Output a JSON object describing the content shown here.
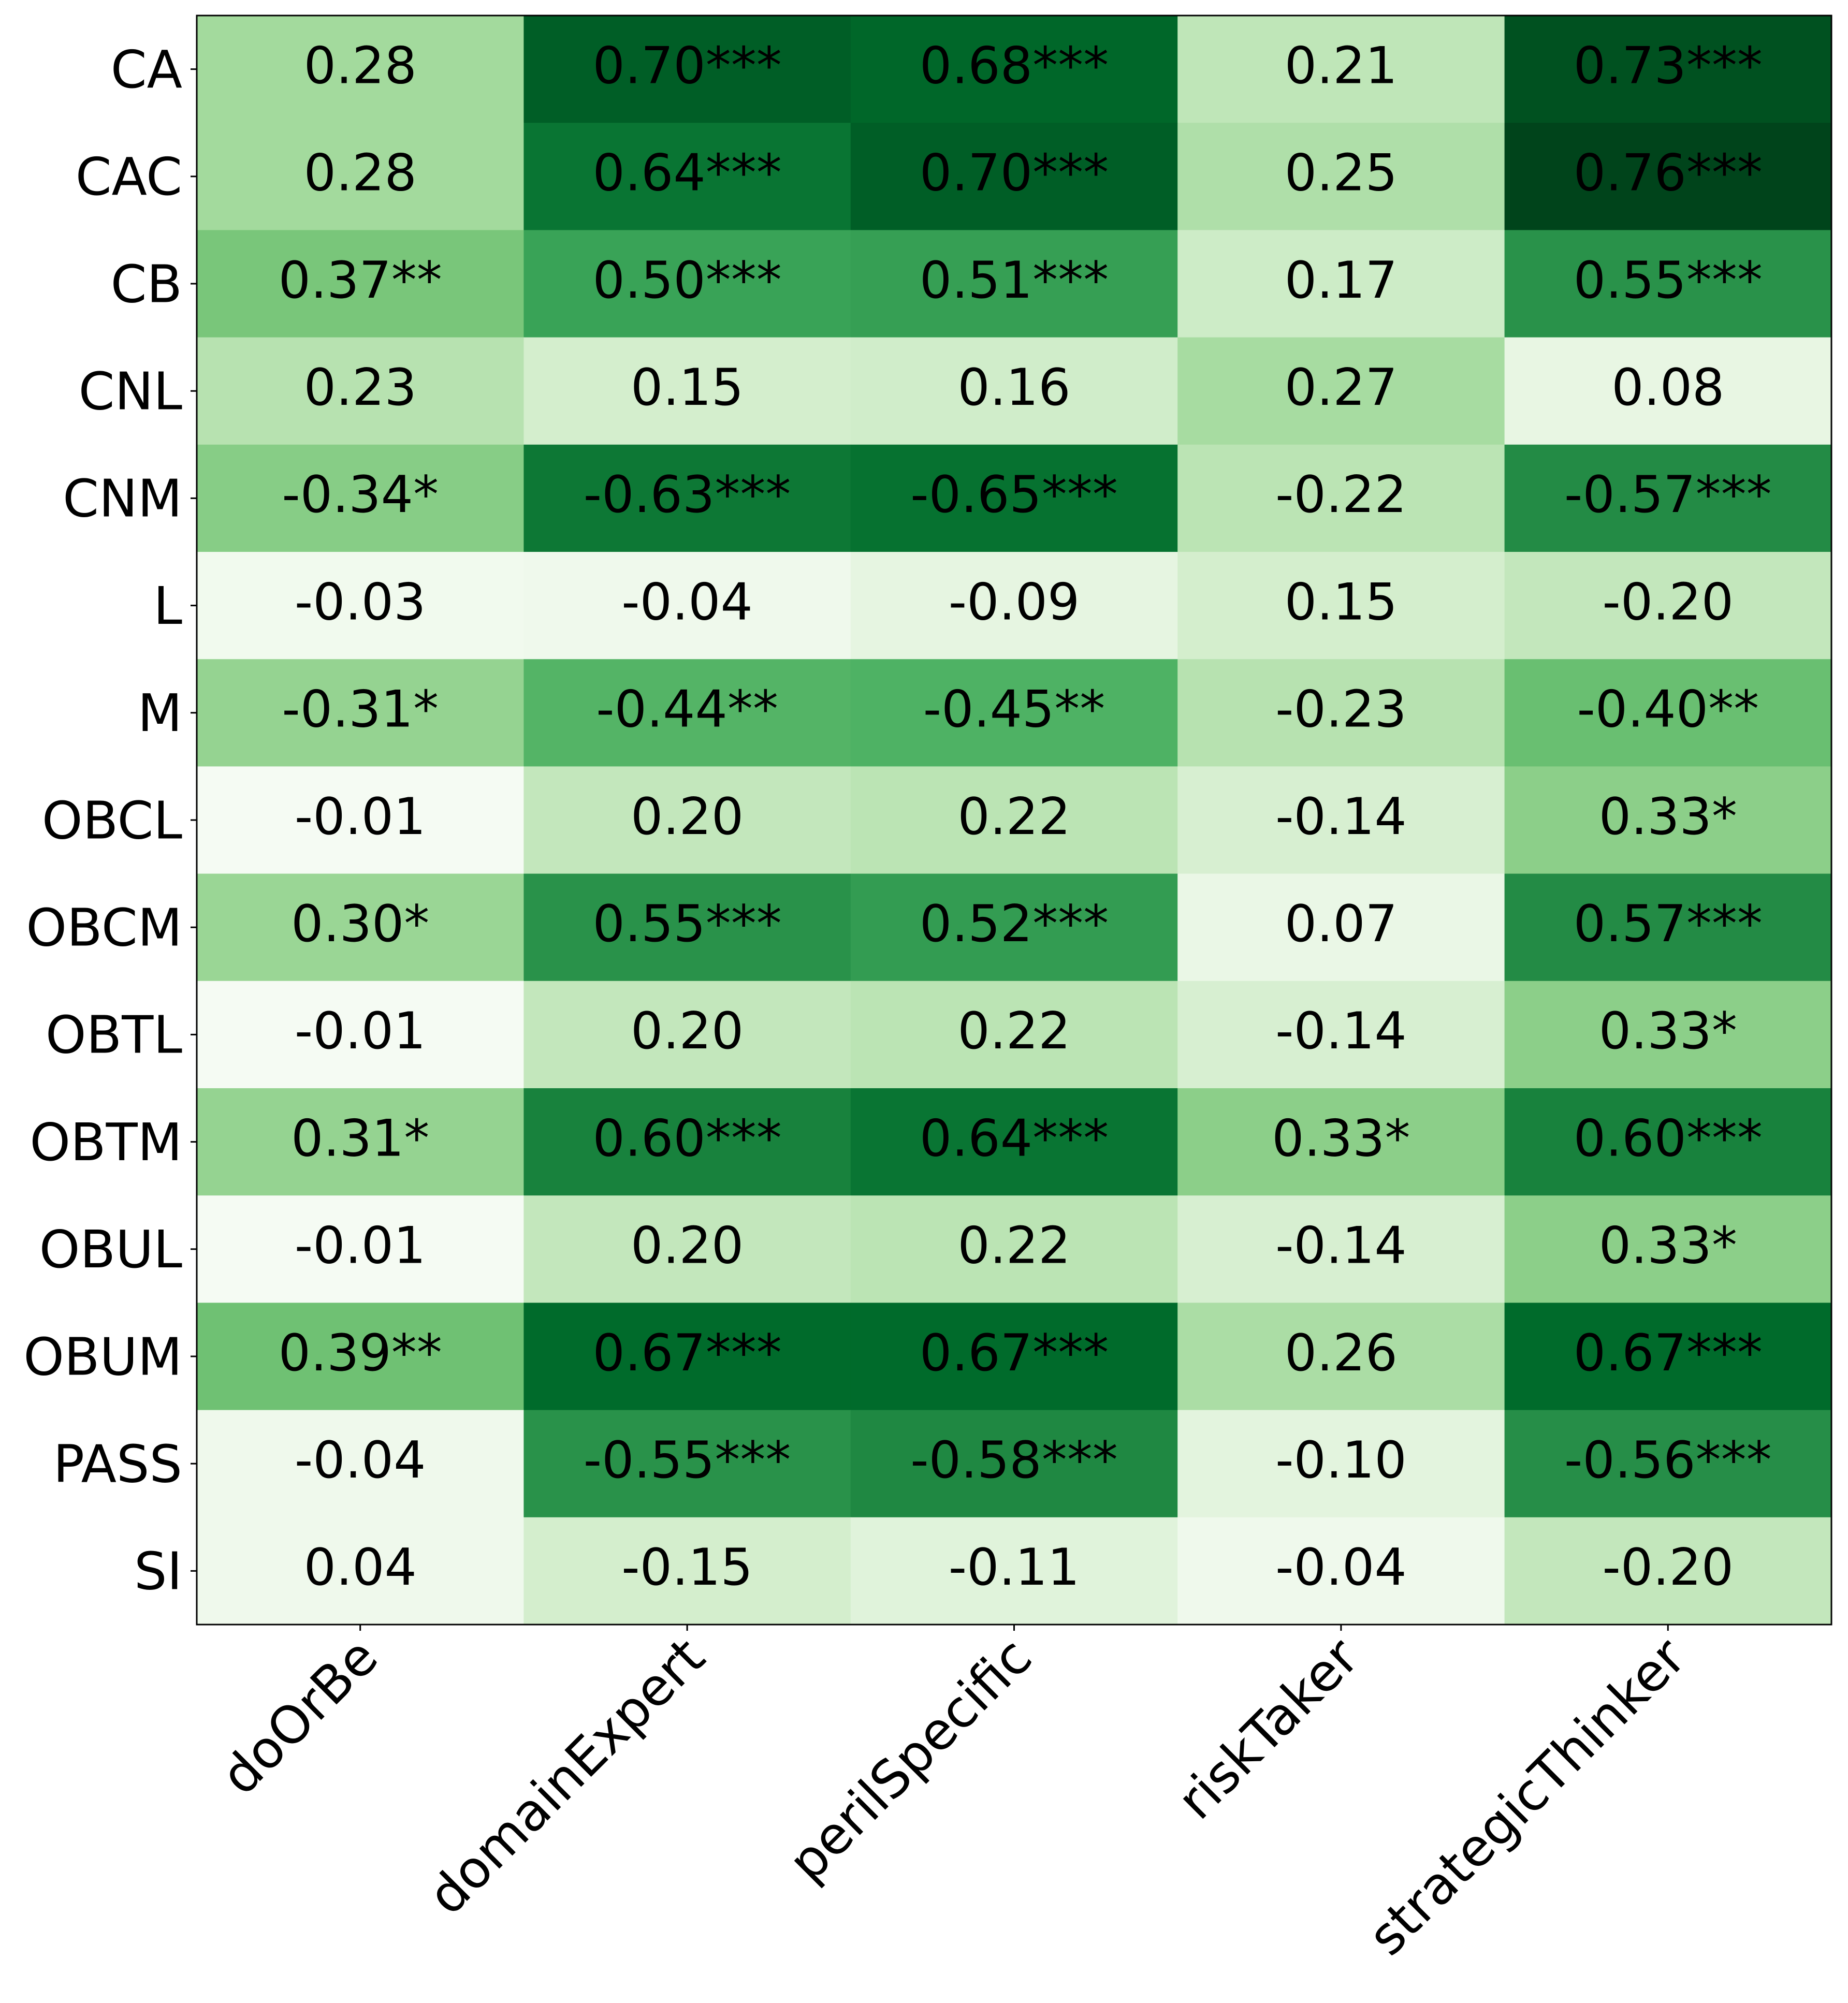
{
  "chart_data": {
    "type": "heatmap",
    "x": [
      "doOrBe",
      "domainExpert",
      "perilSpecific",
      "riskTaker",
      "strategicThinker"
    ],
    "y": [
      "CA",
      "CAC",
      "CB",
      "CNL",
      "CNM",
      "L",
      "M",
      "OBCL",
      "OBCM",
      "OBTL",
      "OBTM",
      "OBUL",
      "OBUM",
      "PASS",
      "SI"
    ],
    "values": [
      [
        0.28,
        0.7,
        0.68,
        0.21,
        0.73
      ],
      [
        0.28,
        0.64,
        0.7,
        0.25,
        0.76
      ],
      [
        0.37,
        0.5,
        0.51,
        0.17,
        0.55
      ],
      [
        0.23,
        0.15,
        0.16,
        0.27,
        0.08
      ],
      [
        -0.34,
        -0.63,
        -0.65,
        -0.22,
        -0.57
      ],
      [
        -0.03,
        -0.04,
        -0.09,
        0.15,
        -0.2
      ],
      [
        -0.31,
        -0.44,
        -0.45,
        -0.23,
        -0.4
      ],
      [
        -0.01,
        0.2,
        0.22,
        -0.14,
        0.33
      ],
      [
        0.3,
        0.55,
        0.52,
        0.07,
        0.57
      ],
      [
        -0.01,
        0.2,
        0.22,
        -0.14,
        0.33
      ],
      [
        0.31,
        0.6,
        0.64,
        0.33,
        0.6
      ],
      [
        -0.01,
        0.2,
        0.22,
        -0.14,
        0.33
      ],
      [
        0.39,
        0.67,
        0.67,
        0.26,
        0.67
      ],
      [
        -0.04,
        -0.55,
        -0.58,
        -0.1,
        -0.56
      ],
      [
        0.04,
        -0.15,
        -0.11,
        -0.04,
        -0.2
      ]
    ],
    "value_labels": [
      [
        "0.28",
        "0.70***",
        "0.68***",
        "0.21",
        "0.73***"
      ],
      [
        "0.28",
        "0.64***",
        "0.70***",
        "0.25",
        "0.76***"
      ],
      [
        "0.37**",
        "0.50***",
        "0.51***",
        "0.17",
        "0.55***"
      ],
      [
        "0.23",
        "0.15",
        "0.16",
        "0.27",
        "0.08"
      ],
      [
        "-0.34*",
        "-0.63***",
        "-0.65***",
        "-0.22",
        "-0.57***"
      ],
      [
        "-0.03",
        "-0.04",
        "-0.09",
        "0.15",
        "-0.20"
      ],
      [
        "-0.31*",
        "-0.44**",
        "-0.45**",
        "-0.23",
        "-0.40**"
      ],
      [
        "-0.01",
        "0.20",
        "0.22",
        "-0.14",
        "0.33*"
      ],
      [
        "0.30*",
        "0.55***",
        "0.52***",
        "0.07",
        "0.57***"
      ],
      [
        "-0.01",
        "0.20",
        "0.22",
        "-0.14",
        "0.33*"
      ],
      [
        "0.31*",
        "0.60***",
        "0.64***",
        "0.33*",
        "0.60***"
      ],
      [
        "-0.01",
        "0.20",
        "0.22",
        "-0.14",
        "0.33*"
      ],
      [
        "0.39**",
        "0.67***",
        "0.67***",
        "0.26",
        "0.67***"
      ],
      [
        "-0.04",
        "-0.55***",
        "-0.58***",
        "-0.10",
        "-0.56***"
      ],
      [
        "0.04",
        "-0.15",
        "-0.11",
        "-0.04",
        "-0.20"
      ]
    ],
    "colormap": [
      "#f7fcf5",
      "#e5f5e0",
      "#c7e9c0",
      "#a1d99b",
      "#74c476",
      "#41ab5d",
      "#238b45",
      "#006d2c",
      "#00441b"
    ]
  }
}
